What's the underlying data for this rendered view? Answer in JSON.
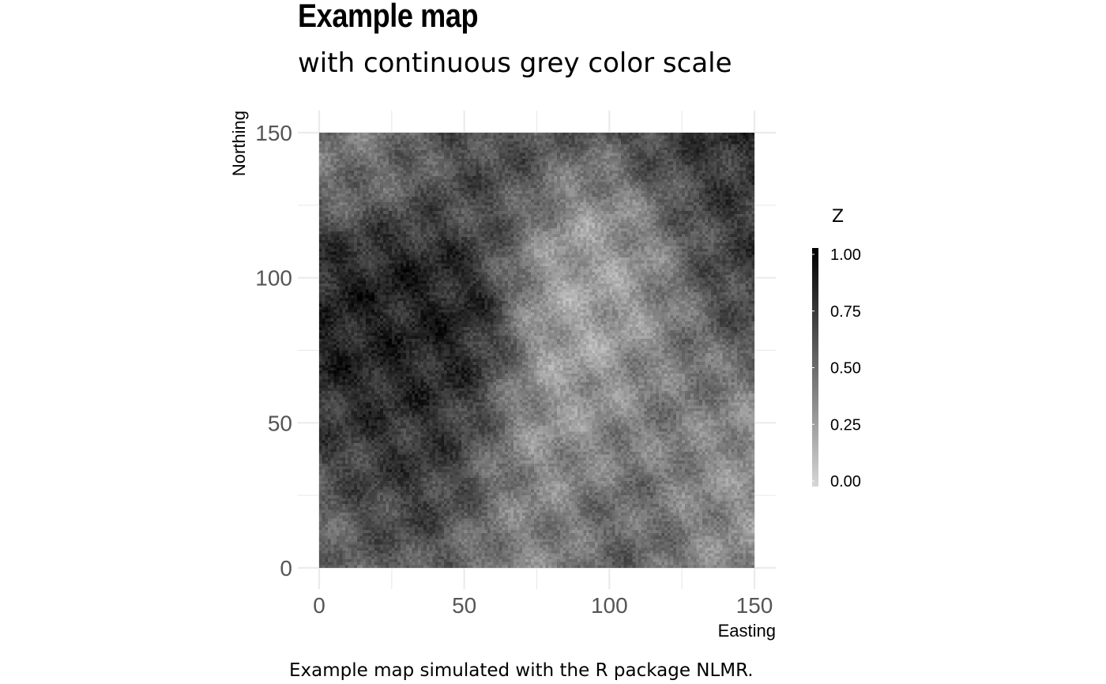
{
  "title": "Example map",
  "subtitle": "with continuous grey color scale",
  "caption": "Example map simulated with the R package NLMR.",
  "chart_data": {
    "type": "heatmap",
    "xlabel": "Easting",
    "ylabel": "Northing",
    "xlim": [
      0,
      150
    ],
    "ylim": [
      0,
      150
    ],
    "x_ticks": [
      "0",
      "50",
      "100",
      "150"
    ],
    "y_ticks": [
      "0",
      "50",
      "100",
      "150"
    ],
    "grid": true,
    "legend": {
      "title": "Z",
      "position": "right",
      "range": [
        0,
        1
      ],
      "breaks": [
        "0.00",
        "0.25",
        "0.50",
        "0.75",
        "1.00"
      ],
      "low_color": "#d6d6d6",
      "high_color": "#000000"
    },
    "value_regions": [
      {
        "x": 15,
        "y": 95,
        "z": 0.82
      },
      {
        "x": 30,
        "y": 85,
        "z": 0.88
      },
      {
        "x": 40,
        "y": 70,
        "z": 0.8
      },
      {
        "x": 35,
        "y": 25,
        "z": 0.85
      },
      {
        "x": 25,
        "y": 40,
        "z": 0.72
      },
      {
        "x": 120,
        "y": 145,
        "z": 0.8
      },
      {
        "x": 145,
        "y": 125,
        "z": 0.78
      },
      {
        "x": 140,
        "y": 110,
        "z": 0.7
      },
      {
        "x": 60,
        "y": 135,
        "z": 0.65
      },
      {
        "x": 10,
        "y": 140,
        "z": 0.45
      },
      {
        "x": 95,
        "y": 70,
        "z": 0.18
      },
      {
        "x": 105,
        "y": 120,
        "z": 0.2
      },
      {
        "x": 100,
        "y": 100,
        "z": 0.25
      },
      {
        "x": 80,
        "y": 40,
        "z": 0.3
      },
      {
        "x": 135,
        "y": 35,
        "z": 0.25
      },
      {
        "x": 120,
        "y": 60,
        "z": 0.55
      },
      {
        "x": 60,
        "y": 10,
        "z": 0.35
      },
      {
        "x": 10,
        "y": 10,
        "z": 0.45
      },
      {
        "x": 145,
        "y": 15,
        "z": 0.35
      },
      {
        "x": 110,
        "y": 20,
        "z": 0.6
      }
    ]
  }
}
